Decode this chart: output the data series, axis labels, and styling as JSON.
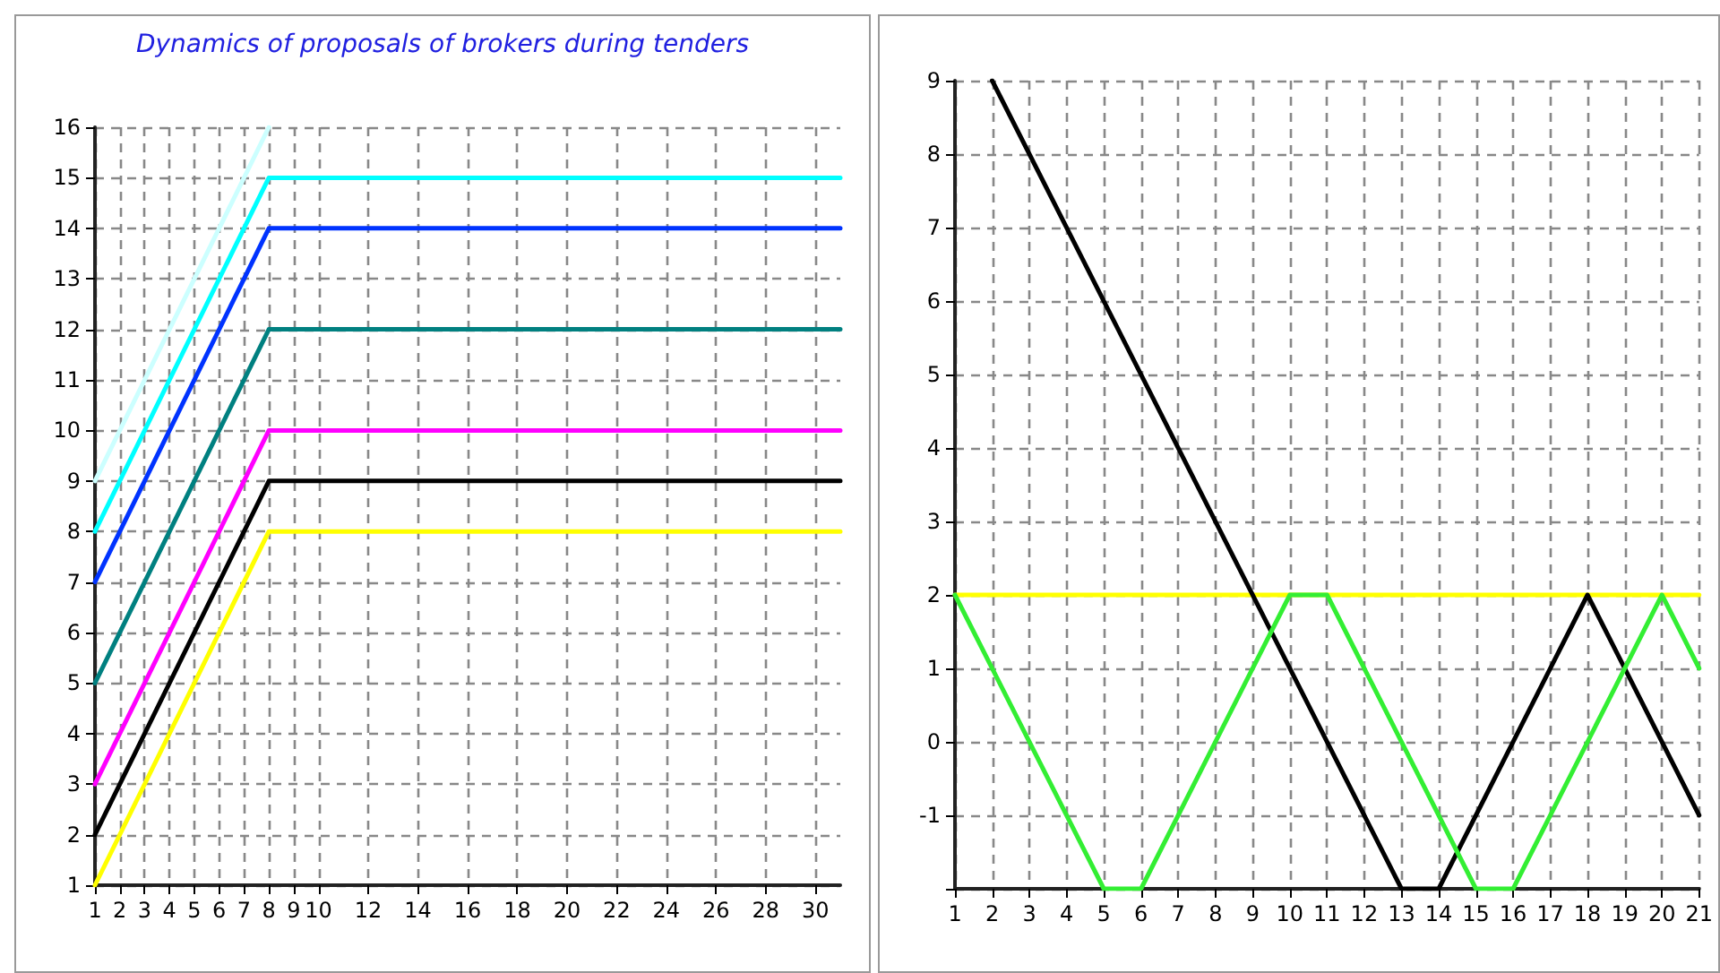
{
  "chart_data": [
    {
      "type": "line",
      "title": "Dynamics of proposals of brokers during tenders",
      "x": [
        1,
        8,
        31
      ],
      "series": [
        {
          "color": "#ccffff",
          "values": [
            9,
            16
          ],
          "x": [
            1,
            8
          ]
        },
        {
          "color": "#00ffff",
          "values": [
            8,
            15,
            15
          ]
        },
        {
          "color": "#0033ff",
          "values": [
            7,
            14,
            14
          ]
        },
        {
          "color": "#008080",
          "values": [
            5,
            12,
            12
          ]
        },
        {
          "color": "#ff00ff",
          "values": [
            3,
            10,
            10
          ]
        },
        {
          "color": "#000000",
          "values": [
            2,
            9,
            9
          ]
        },
        {
          "color": "#ffff00",
          "values": [
            1,
            8,
            8
          ]
        }
      ],
      "xlim": [
        1,
        31
      ],
      "xticks": [
        1,
        2,
        3,
        4,
        5,
        6,
        7,
        8,
        9,
        10,
        12,
        14,
        16,
        18,
        20,
        22,
        24,
        26,
        28,
        30
      ],
      "ylim": [
        1,
        16
      ],
      "yticks": [
        1,
        2,
        3,
        4,
        5,
        6,
        7,
        8,
        9,
        10,
        11,
        12,
        13,
        14,
        15,
        16
      ],
      "grid": true,
      "marker": "none",
      "line_style": "solid"
    },
    {
      "type": "line",
      "series": [
        {
          "color": "#ffff00",
          "x": [
            1,
            21
          ],
          "values": [
            2,
            2
          ]
        },
        {
          "color": "#000000",
          "x": [
            2,
            13,
            14,
            18,
            21
          ],
          "values": [
            9,
            -2,
            -2,
            2,
            -1
          ]
        },
        {
          "color": "#33ee33",
          "x": [
            1,
            5,
            6,
            10,
            11,
            15,
            16,
            20,
            21
          ],
          "values": [
            2,
            -2,
            -2,
            2,
            2,
            -2,
            -2,
            2,
            1
          ]
        }
      ],
      "xlim": [
        1,
        21
      ],
      "xticks": [
        1,
        2,
        3,
        4,
        5,
        6,
        7,
        8,
        9,
        10,
        11,
        12,
        13,
        14,
        15,
        16,
        17,
        18,
        19,
        20,
        21
      ],
      "ylim": [
        -2,
        9
      ],
      "yticks": [
        {
          "value": -2,
          "label": null
        },
        -1,
        0,
        1,
        2,
        3,
        4,
        5,
        6,
        7,
        8,
        9
      ],
      "grid": true,
      "marker": "none",
      "line_style": "solid"
    }
  ]
}
